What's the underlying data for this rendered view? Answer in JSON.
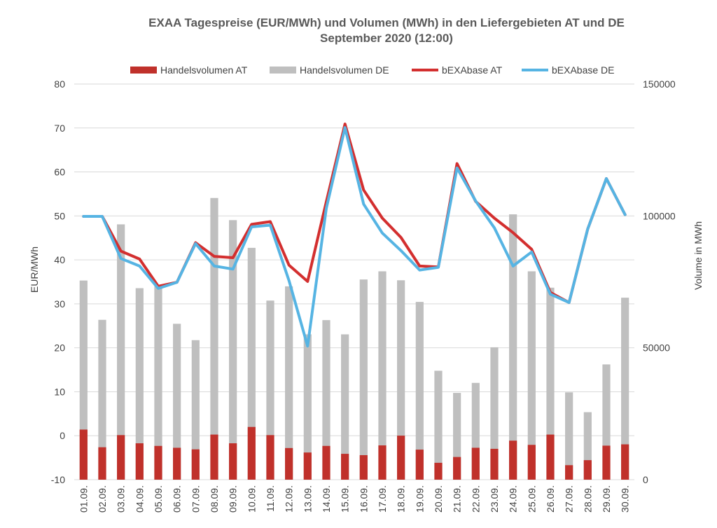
{
  "chart_data": {
    "type": "bar+line",
    "title": "EXAA Tagespreise (EUR/MWh) und Volumen (MWh) in den Liefergebieten AT und DE",
    "subtitle": "September 2020 (12:00)",
    "ylabel": "EUR/MWh",
    "y2label": "Volume in MWh",
    "ylim": [
      -10,
      80
    ],
    "y_ticks": [
      "-10",
      "0",
      "10",
      "20",
      "30",
      "40",
      "50",
      "60",
      "70",
      "80"
    ],
    "y2lim": [
      0,
      150000
    ],
    "y2_ticks": [
      "0",
      "50000",
      "100000",
      "150000"
    ],
    "grid": true,
    "legend_position": "top",
    "categories": [
      "01.09.",
      "02.09.",
      "03.09.",
      "04.09.",
      "05.09.",
      "06.09.",
      "07.09.",
      "08.09.",
      "09.09.",
      "10.09.",
      "11.09.",
      "12.09.",
      "13.09.",
      "14.09.",
      "15.09.",
      "16.09.",
      "17.09.",
      "18.09.",
      "19.09.",
      "20.09.",
      "21.09.",
      "22.09.",
      "23.09.",
      "24.09.",
      "25.09.",
      "26.09.",
      "27.09.",
      "28.09.",
      "29.09.",
      "30.09."
    ],
    "series": [
      {
        "name": "Handelsvolumen AT",
        "kind": "bar",
        "axis": "right",
        "color": "#c0312b",
        "values": [
          19000,
          12300,
          16900,
          13800,
          12800,
          12100,
          11500,
          17100,
          13800,
          20000,
          16900,
          12000,
          10300,
          12800,
          9800,
          9300,
          13000,
          16700,
          11400,
          6400,
          8600,
          12100,
          11700,
          14800,
          13200,
          17100,
          5500,
          7400,
          12900,
          13400
        ]
      },
      {
        "name": "Handelsvolumen DE",
        "kind": "bar",
        "axis": "right",
        "color": "#bfbfbf",
        "values": [
          75500,
          60600,
          96800,
          72600,
          73900,
          59100,
          52900,
          106800,
          98400,
          87900,
          67900,
          73300,
          55100,
          60500,
          55100,
          75900,
          79000,
          75600,
          67400,
          41300,
          32900,
          36700,
          50200,
          100600,
          79000,
          72800,
          33100,
          25600,
          43700,
          69000
        ]
      },
      {
        "name": "bEXAbase AT",
        "kind": "line",
        "axis": "left",
        "color": "#d32f2f",
        "values": [
          49.9,
          49.9,
          42.0,
          40.2,
          34.0,
          34.9,
          43.9,
          40.8,
          40.5,
          48.1,
          48.7,
          38.8,
          35.1,
          53.2,
          70.9,
          55.9,
          49.5,
          45.1,
          38.6,
          38.4,
          61.9,
          53.3,
          49.5,
          46.2,
          42.4,
          32.6,
          30.3,
          47.0,
          58.5,
          50.3
        ]
      },
      {
        "name": "bEXAbase DE",
        "kind": "line",
        "axis": "left",
        "color": "#56b4e3",
        "values": [
          49.9,
          49.9,
          40.3,
          38.6,
          33.5,
          34.9,
          43.7,
          38.6,
          37.9,
          47.5,
          47.9,
          35.3,
          20.4,
          51.7,
          70.1,
          52.7,
          46.1,
          42.1,
          37.7,
          38.3,
          60.9,
          53.4,
          47.3,
          38.6,
          41.8,
          32.2,
          30.3,
          47.0,
          58.5,
          50.3
        ]
      }
    ]
  }
}
